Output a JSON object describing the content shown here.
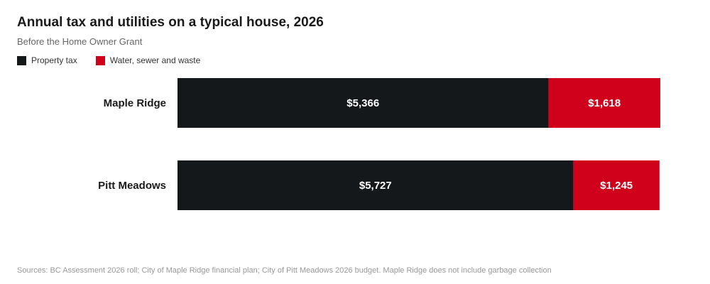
{
  "chart_data": {
    "type": "bar",
    "orientation": "horizontal",
    "stacked": true,
    "title": "Annual tax and utilities on a typical house, 2026",
    "subtitle": "Before the Home Owner Grant",
    "categories": [
      "Maple Ridge",
      "Pitt Meadows"
    ],
    "series": [
      {
        "name": "Property tax",
        "color": "#15181b",
        "values": [
          5366,
          5727
        ],
        "labels": [
          "$5,366",
          "$5,727"
        ]
      },
      {
        "name": "Water, sewer and waste",
        "color": "#d0021b",
        "values": [
          1618,
          1245
        ],
        "labels": [
          "$1,618",
          "$1,245"
        ]
      }
    ],
    "legend_position": "top-left",
    "grid": false,
    "source": "Sources: BC Assessment 2026 roll; City of Maple Ridge financial plan; City of Pitt Meadows 2026 budget. Maple Ridge does not include garbage collection"
  }
}
